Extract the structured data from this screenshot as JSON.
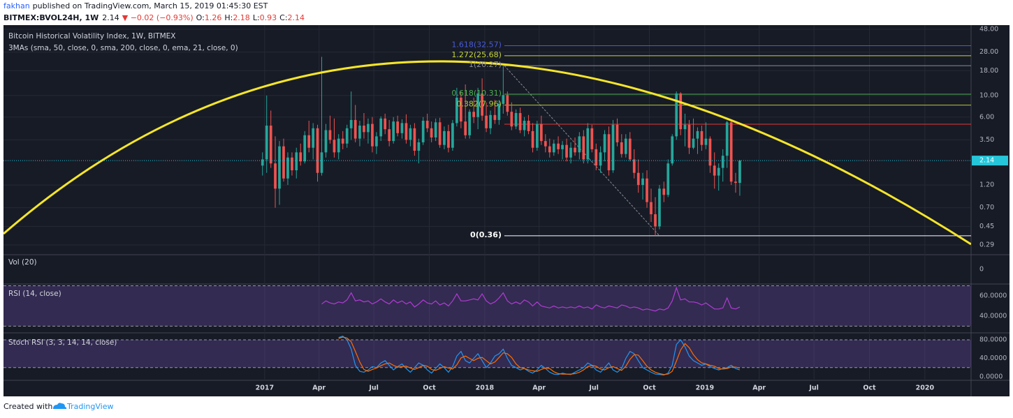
{
  "header": {
    "author": "fakhan",
    "published": "published on TradingView.com, March 15, 2019 01:45:30 EST",
    "symbol": "BITMEX:BVOL24H, 1W",
    "last": "2.14",
    "change": "▼ −0.02 (−0.93%)",
    "ohlc": [
      {
        "label": "O:",
        "value": "1.26"
      },
      {
        "label": "H:",
        "value": "2.18"
      },
      {
        "label": "L:",
        "value": "0.93"
      },
      {
        "label": "C:",
        "value": "2.14"
      }
    ]
  },
  "footer": {
    "created": "Created with",
    "brand": "TradingView"
  },
  "chart_data": [
    {
      "type": "candlestick",
      "title": "Bitcoin Historical Volatility Index, 1W, BITMEX",
      "subtitle": "3MAs (sma, 50, close, 0, sma, 200, close, 0, ema, 21, close, 0)",
      "up_color": "#26a69a",
      "down_color": "#ef5350",
      "log_scale": true,
      "grid": true,
      "xlim": [
        2015.813,
        2020.21
      ],
      "xticks": [
        2017,
        {
          "value": 2017.247,
          "label": "Apr"
        },
        {
          "value": 2017.496,
          "label": "Jul"
        },
        {
          "value": 2017.748,
          "label": "Oct"
        },
        2018,
        {
          "value": 2018.247,
          "label": "Apr"
        },
        {
          "value": 2018.496,
          "label": "Jul"
        },
        {
          "value": 2018.748,
          "label": "Oct"
        },
        2019,
        {
          "value": 2019.247,
          "label": "Apr"
        },
        {
          "value": 2019.496,
          "label": "Jul"
        },
        {
          "value": 2019.748,
          "label": "Oct"
        },
        2020
      ],
      "ylim": [
        0.23,
        53
      ],
      "yticks": [
        {
          "value": 48,
          "label": "48.00"
        },
        {
          "value": 28,
          "label": "28.00"
        },
        {
          "value": 18,
          "label": "18.00"
        },
        {
          "value": 10,
          "label": "10.00"
        },
        {
          "value": 6,
          "label": "6.00"
        },
        {
          "value": 3.5,
          "label": "3.50"
        },
        {
          "value": 1.2,
          "label": "1.20"
        },
        {
          "value": 0.7,
          "label": "0.70"
        },
        {
          "value": 0.45,
          "label": "0.45"
        },
        {
          "value": 0.29,
          "label": "0.29"
        }
      ],
      "last_price": {
        "value": 2.14,
        "color": "#26c6da"
      },
      "fib_range": {
        "color": "#8a8d96",
        "from": {
          "x": 2018.089,
          "value": 20.27
        },
        "to": {
          "x": 2018.794,
          "value": 0.36
        }
      },
      "fib_levels": [
        {
          "value": 32.57,
          "label": "1.618(32.57)",
          "color": "#4a5bd4"
        },
        {
          "value": 25.68,
          "label": "1.272(25.68)",
          "color": "#c6d63a"
        },
        {
          "value": 20.27,
          "label": "1(20.27)",
          "color": "#8a8d96"
        },
        {
          "value": 10.31,
          "label": "0.618(10.31)",
          "color": "#4caf50"
        },
        {
          "value": 7.96,
          "label": "0.382(7.96)",
          "color": "#b5c934"
        },
        {
          "value": 5.06,
          "color": "#e53935"
        },
        {
          "value": 0.36,
          "label": "0(0.36)",
          "color": "#ffffff"
        }
      ],
      "x": [
        2016.99,
        2017.009,
        2017.028,
        2017.048,
        2017.067,
        2017.086,
        2017.105,
        2017.124,
        2017.144,
        2017.163,
        2017.182,
        2017.201,
        2017.22,
        2017.24,
        2017.259,
        2017.278,
        2017.297,
        2017.316,
        2017.336,
        2017.355,
        2017.374,
        2017.393,
        2017.412,
        2017.432,
        2017.451,
        2017.47,
        2017.489,
        2017.508,
        2017.528,
        2017.547,
        2017.566,
        2017.585,
        2017.604,
        2017.624,
        2017.643,
        2017.662,
        2017.681,
        2017.7,
        2017.72,
        2017.739,
        2017.758,
        2017.777,
        2017.796,
        2017.816,
        2017.835,
        2017.854,
        2017.873,
        2017.892,
        2017.912,
        2017.931,
        2017.95,
        2017.969,
        2017.988,
        2018.007,
        2018.026,
        2018.046,
        2018.065,
        2018.084,
        2018.103,
        2018.122,
        2018.142,
        2018.161,
        2018.18,
        2018.199,
        2018.218,
        2018.238,
        2018.257,
        2018.276,
        2018.295,
        2018.314,
        2018.334,
        2018.353,
        2018.372,
        2018.391,
        2018.41,
        2018.43,
        2018.449,
        2018.468,
        2018.487,
        2018.506,
        2018.526,
        2018.545,
        2018.564,
        2018.583,
        2018.602,
        2018.622,
        2018.641,
        2018.66,
        2018.679,
        2018.698,
        2018.718,
        2018.737,
        2018.756,
        2018.775,
        2018.794,
        2018.814,
        2018.833,
        2018.852,
        2018.871,
        2018.89,
        2018.91,
        2018.929,
        2018.948,
        2018.967,
        2018.986,
        2019.005,
        2019.024,
        2019.044,
        2019.063,
        2019.082,
        2019.101,
        2019.12,
        2019.14,
        2019.159
      ],
      "open": [
        1.9,
        2.2,
        4.9,
        2.0,
        1.1,
        3.0,
        1.4,
        2.3,
        1.7,
        2.6,
        2.1,
        3.9,
        2.9,
        4.6,
        1.6,
        2.6,
        4.4,
        3.5,
        2.6,
        3.6,
        3.2,
        4.6,
        5.6,
        3.6,
        4.9,
        4.2,
        5.1,
        3.0,
        3.8,
        5.8,
        4.5,
        3.4,
        5.4,
        4.1,
        5.2,
        3.5,
        4.6,
        2.7,
        3.3,
        5.5,
        4.6,
        3.7,
        5.3,
        3.1,
        4.3,
        2.9,
        5.2,
        9.5,
        5.4,
        3.9,
        6.8,
        6.0,
        10.5,
        6.2,
        4.6,
        6.3,
        5.6,
        8.2,
        10.1,
        6.8,
        4.8,
        6.6,
        4.4,
        5.5,
        4.3,
        2.9,
        5.1,
        3.4,
        3.0,
        2.6,
        3.2,
        2.8,
        3.1,
        2.3,
        2.9,
        2.6,
        3.8,
        2.2,
        4.6,
        2.8,
        1.9,
        2.6,
        4.0,
        1.7,
        5.0,
        3.3,
        2.5,
        3.6,
        2.2,
        1.6,
        1.2,
        1.4,
        0.8,
        0.6,
        0.45,
        1.1,
        0.95,
        2.0,
        3.8,
        10.5,
        4.5,
        5.0,
        2.9,
        3.6,
        4.3,
        3.1,
        3.6,
        1.9,
        1.5,
        1.8,
        2.4,
        5.3,
        1.3,
        1.26
      ],
      "high": [
        2.6,
        10,
        7,
        3.8,
        3.4,
        3.6,
        2.6,
        2.6,
        2.9,
        3.2,
        4.3,
        5.5,
        5.2,
        5.0,
        25,
        5.1,
        6.2,
        5.8,
        4.0,
        4.3,
        5.0,
        11,
        8,
        5.5,
        6.6,
        5.8,
        6.0,
        4.2,
        6.1,
        6.5,
        5.6,
        6.0,
        6.2,
        5.7,
        6.4,
        5.0,
        5.2,
        3.6,
        6.0,
        6.5,
        5.4,
        5.8,
        5.9,
        4.8,
        5.0,
        5.6,
        12,
        11,
        13,
        7.2,
        9.5,
        12,
        15,
        8.5,
        7.0,
        9,
        9.0,
        20.27,
        11,
        8.5,
        7.2,
        7.5,
        6.0,
        6.3,
        5.2,
        5.5,
        6.2,
        4.0,
        3.6,
        3.5,
        3.8,
        3.4,
        3.6,
        3.3,
        3.7,
        4.2,
        4.4,
        5.2,
        5.0,
        3.2,
        3.0,
        4.4,
        4.8,
        5.6,
        5.8,
        4.0,
        4.0,
        4.2,
        2.8,
        2.2,
        1.6,
        1.7,
        1.1,
        0.9,
        1.2,
        1.3,
        2.2,
        4.0,
        11,
        10.8,
        6.5,
        5.6,
        5.8,
        4.7,
        4.9,
        5.3,
        3.8,
        2.6,
        2.0,
        2.8,
        5.5,
        5.5,
        1.6,
        2.18
      ],
      "low": [
        1.5,
        1.6,
        1.8,
        0.7,
        0.75,
        1.3,
        1.2,
        1.5,
        1.4,
        1.9,
        2.0,
        2.6,
        2.2,
        1.3,
        1.5,
        2.3,
        3.2,
        2.3,
        2.2,
        2.8,
        2.9,
        3.5,
        3.3,
        3.0,
        3.6,
        3.2,
        2.6,
        2.5,
        3.4,
        4.0,
        3.0,
        3.2,
        3.8,
        3.6,
        3.2,
        3.0,
        2.4,
        2.0,
        3.1,
        4.2,
        3.3,
        3.4,
        2.9,
        2.8,
        2.6,
        2.7,
        4.8,
        4.6,
        3.6,
        3.6,
        5.2,
        4.5,
        5.5,
        4.2,
        4.0,
        5.1,
        5.0,
        6.5,
        6.2,
        4.4,
        4.5,
        4.1,
        3.8,
        4.0,
        2.6,
        2.7,
        3.1,
        2.6,
        2.3,
        2.4,
        2.5,
        2.2,
        2.1,
        2.0,
        2.4,
        2.2,
        2.0,
        2.0,
        2.6,
        1.7,
        1.6,
        2.1,
        1.5,
        1.6,
        3.0,
        2.3,
        2.3,
        2.1,
        1.4,
        1.0,
        0.85,
        0.7,
        0.5,
        0.36,
        0.42,
        0.8,
        0.9,
        1.9,
        3.5,
        3.9,
        3.0,
        2.5,
        2.8,
        2.5,
        2.7,
        2.8,
        1.6,
        1.1,
        1.05,
        1.3,
        1.8,
        1.2,
        1.0,
        0.93
      ],
      "close": [
        2.2,
        4.9,
        2.0,
        1.1,
        3.0,
        1.4,
        2.3,
        1.7,
        2.6,
        2.1,
        3.9,
        2.9,
        4.6,
        1.6,
        2.6,
        4.4,
        3.5,
        2.6,
        3.6,
        3.2,
        4.6,
        5.6,
        3.6,
        4.9,
        4.2,
        5.1,
        3.0,
        3.8,
        5.8,
        4.5,
        3.4,
        5.4,
        4.1,
        5.2,
        3.5,
        4.6,
        2.7,
        3.3,
        5.5,
        4.6,
        3.7,
        5.3,
        3.1,
        4.3,
        2.9,
        5.2,
        9.5,
        5.4,
        3.9,
        6.8,
        6.0,
        10.5,
        6.2,
        4.6,
        6.3,
        5.6,
        8.2,
        10.1,
        6.8,
        4.8,
        6.6,
        4.4,
        5.5,
        4.3,
        2.9,
        5.1,
        3.4,
        3.0,
        2.6,
        3.2,
        2.8,
        3.1,
        2.3,
        2.9,
        2.6,
        3.8,
        2.2,
        4.6,
        2.8,
        1.9,
        2.6,
        4.0,
        1.7,
        5.0,
        3.3,
        2.5,
        3.6,
        2.2,
        1.6,
        1.2,
        1.4,
        0.8,
        0.6,
        0.45,
        1.1,
        0.95,
        2.0,
        3.8,
        10.5,
        4.5,
        5.0,
        2.9,
        3.6,
        4.3,
        3.1,
        3.6,
        1.9,
        1.5,
        1.8,
        2.4,
        5.3,
        1.3,
        1.26,
        2.14
      ]
    },
    {
      "type": "volume",
      "title": "Vol (20)",
      "yticks": [
        0
      ]
    },
    {
      "type": "line",
      "title": "RSI (14, close)",
      "ylim": [
        23.4,
        71.7
      ],
      "yticks": [
        {
          "value": 60,
          "label": "60.0000"
        },
        {
          "value": 40,
          "label": "40.0000"
        }
      ],
      "band": [
        30,
        70
      ],
      "band_color": "#7e57c2",
      "series": [
        {
          "color": "#b23ad6",
          "values": [
            null,
            null,
            null,
            null,
            null,
            null,
            null,
            null,
            null,
            null,
            null,
            null,
            null,
            null,
            52,
            55,
            53,
            52,
            54,
            53,
            56,
            63,
            55,
            56,
            54,
            55,
            52,
            54,
            57,
            54,
            52,
            56,
            53,
            55,
            52,
            54,
            49,
            52,
            56,
            53,
            52,
            55,
            51,
            53,
            50,
            55,
            62,
            55,
            55,
            56,
            57,
            56,
            62,
            55,
            52,
            54,
            58,
            63,
            55,
            52,
            54,
            52,
            56,
            54,
            50,
            54,
            50,
            49,
            48,
            50,
            48,
            49,
            48,
            49,
            48,
            50,
            48,
            49,
            47,
            51,
            49,
            48,
            50,
            49,
            48,
            51,
            50,
            48,
            49,
            48,
            46,
            47,
            46,
            45,
            47,
            46,
            48,
            55,
            68,
            56,
            57,
            54,
            54,
            53,
            51,
            53,
            50,
            47,
            47,
            48,
            58,
            48,
            47,
            49
          ]
        }
      ]
    },
    {
      "type": "line",
      "title": "Stoch RSI (3, 3, 14, 14, close)",
      "ylim": [
        -7.5,
        95.1
      ],
      "yticks": [
        {
          "value": 80,
          "label": "80.0000"
        },
        {
          "value": 40,
          "label": "40.0000"
        },
        {
          "value": 0,
          "label": "0.0000"
        }
      ],
      "band": [
        20,
        80
      ],
      "band_color": "#7e57c2",
      "series": [
        {
          "color": "#2196f3",
          "values": [
            null,
            null,
            null,
            null,
            null,
            null,
            null,
            null,
            null,
            null,
            null,
            null,
            null,
            null,
            null,
            null,
            null,
            null,
            85,
            88,
            80,
            60,
            25,
            12,
            10,
            15,
            22,
            20,
            30,
            35,
            25,
            15,
            22,
            28,
            18,
            10,
            20,
            30,
            25,
            15,
            8,
            18,
            28,
            20,
            10,
            22,
            45,
            55,
            35,
            30,
            40,
            50,
            35,
            20,
            30,
            45,
            50,
            60,
            40,
            25,
            20,
            15,
            18,
            12,
            8,
            15,
            25,
            18,
            10,
            6,
            5,
            8,
            6,
            5,
            10,
            15,
            20,
            30,
            25,
            15,
            10,
            20,
            30,
            15,
            10,
            18,
            40,
            55,
            50,
            35,
            20,
            15,
            10,
            6,
            5,
            4,
            8,
            25,
            70,
            80,
            65,
            45,
            35,
            30,
            25,
            28,
            22,
            18,
            15,
            18,
            20,
            25,
            18,
            15
          ]
        },
        {
          "color": "#ff6d00",
          "values": [
            null,
            null,
            null,
            null,
            null,
            null,
            null,
            null,
            null,
            null,
            null,
            null,
            null,
            null,
            null,
            null,
            null,
            null,
            83,
            86,
            84,
            76,
            55,
            32,
            16,
            12,
            16,
            19,
            24,
            28,
            30,
            25,
            21,
            22,
            23,
            19,
            16,
            20,
            25,
            23,
            16,
            14,
            18,
            22,
            19,
            17,
            26,
            41,
            45,
            40,
            35,
            40,
            42,
            35,
            28,
            32,
            42,
            52,
            50,
            42,
            28,
            20,
            18,
            15,
            13,
            12,
            16,
            19,
            18,
            11,
            7,
            6,
            6,
            6,
            7,
            10,
            15,
            22,
            25,
            23,
            17,
            15,
            20,
            22,
            18,
            14,
            23,
            38,
            48,
            47,
            35,
            23,
            15,
            10,
            7,
            5,
            6,
            12,
            34,
            58,
            72,
            63,
            48,
            37,
            30,
            28,
            25,
            23,
            18,
            17,
            18,
            21,
            21,
            19
          ]
        }
      ]
    }
  ]
}
